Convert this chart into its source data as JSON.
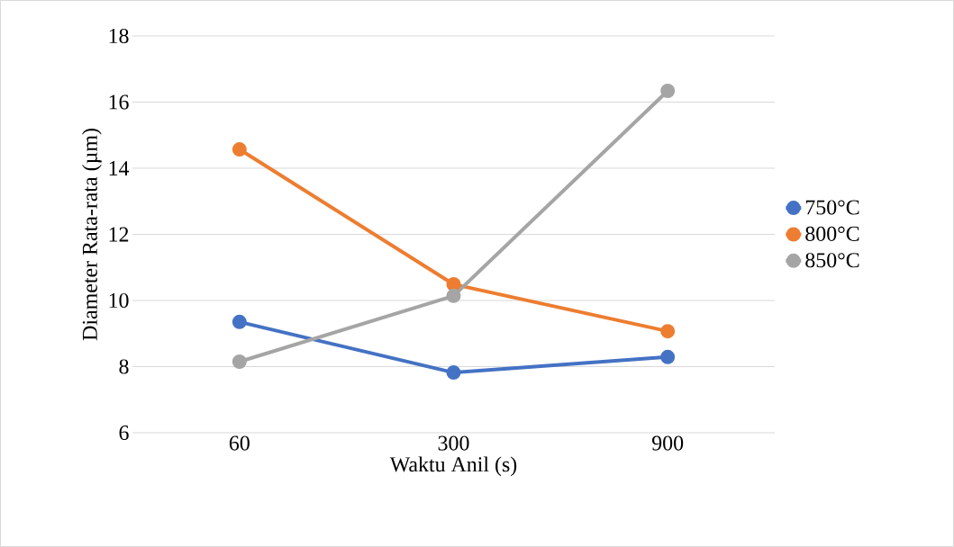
{
  "chart_data": {
    "type": "line",
    "xlabel": "Waktu Anil (s)",
    "ylabel": "Diameter Rata-rata (µm)",
    "categories": [
      "60",
      "300",
      "900"
    ],
    "series": [
      {
        "name": "750°C",
        "color": "#4472c4",
        "values": [
          9.35,
          7.82,
          8.29
        ]
      },
      {
        "name": "800°C",
        "color": "#ed7d31",
        "values": [
          14.57,
          10.49,
          9.07
        ]
      },
      {
        "name": "850°C",
        "color": "#a5a5a5",
        "values": [
          8.15,
          10.14,
          16.34
        ]
      }
    ],
    "ylim": [
      6,
      18
    ],
    "yticks": [
      6,
      8,
      10,
      12,
      14,
      16,
      18
    ],
    "grid": "y",
    "legend": "right",
    "marker": "circle",
    "line_style": "solid"
  }
}
